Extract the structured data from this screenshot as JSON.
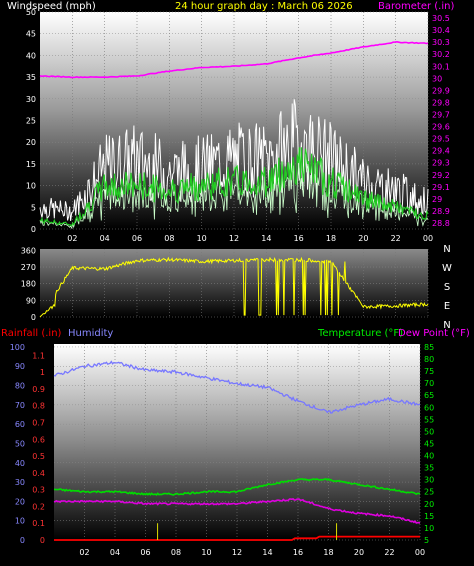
{
  "header": {
    "windspeed_label": "Windspeed (mph)",
    "title": "24 hour graph day : March 06 2026",
    "barometer_label": "Barometer (.in)"
  },
  "wind_panel": {
    "left_ticks": [
      "50",
      "45",
      "40",
      "35",
      "30",
      "25",
      "20",
      "15",
      "10",
      "5",
      "0"
    ],
    "right_ticks": [
      "30.5",
      "30.4",
      "30.3",
      "30.2",
      "30.1",
      "30",
      "29.9",
      "29.8",
      "29.7",
      "29.6",
      "29.5",
      "29.4",
      "29.3",
      "29.2",
      "29.1",
      "29",
      "28.9",
      "28.8"
    ]
  },
  "direction_panel": {
    "left_ticks": [
      "360",
      "270",
      "180",
      "90",
      "0"
    ],
    "compass": [
      "N",
      "W",
      "S",
      "E",
      "N"
    ]
  },
  "bottom_header": {
    "rainfall_label": "Rainfall (.in)",
    "humidity_label": "Humidity",
    "temperature_label": "Temperature (°F)",
    "dewpoint_label": "Dew Point (°F)"
  },
  "bottom_panel": {
    "humidity_ticks": [
      "100",
      "90",
      "80",
      "70",
      "60",
      "50",
      "40",
      "30",
      "20",
      "10",
      "0"
    ],
    "rain_ticks": [
      "1.1",
      "1",
      "0.9",
      "0.8",
      "0.7",
      "0.6",
      "0.5",
      "0.4",
      "0.3",
      "0.2",
      "0.1",
      "0"
    ],
    "temp_ticks": [
      "85",
      "80",
      "75",
      "70",
      "65",
      "60",
      "55",
      "50",
      "45",
      "40",
      "35",
      "30",
      "25",
      "20",
      "15",
      "10",
      "5"
    ]
  },
  "x_ticks": [
    "02",
    "04",
    "06",
    "08",
    "10",
    "12",
    "14",
    "16",
    "18",
    "20",
    "22",
    "00"
  ],
  "colors": {
    "windspeed": "#ffffff",
    "wind_avg": "#22cc22",
    "barometer": "#ff00ff",
    "direction": "#ffff00",
    "rainfall": "#ff0000",
    "humidity": "#7777ff",
    "temperature": "#00dd00",
    "dewpoint": "#dd00dd"
  },
  "chart_data": [
    {
      "type": "line",
      "title": "24 hour graph day : March 06 2026",
      "xlabel": "",
      "ylabel": "Windspeed (mph)",
      "ylim": [
        0,
        50
      ],
      "y2label": "Barometer (.in)",
      "y2lim": [
        28.75,
        30.55
      ],
      "x": [
        "00",
        "02",
        "04",
        "06",
        "08",
        "10",
        "12",
        "14",
        "16",
        "18",
        "20",
        "22",
        "00"
      ],
      "series": [
        {
          "name": "Barometer (.in)",
          "axis": "right",
          "values": [
            30.02,
            30.01,
            30.01,
            30.02,
            30.06,
            30.09,
            30.1,
            30.12,
            30.17,
            30.21,
            30.26,
            30.3,
            30.29
          ]
        }
      ],
      "windspeed_gust": [
        5,
        4,
        14,
        16,
        13,
        14,
        16,
        16,
        20,
        16,
        11,
        9,
        6
      ],
      "windspeed_avg": [
        2,
        1,
        10,
        10,
        9,
        10,
        11,
        11,
        15,
        11,
        7,
        5,
        3
      ]
    },
    {
      "type": "line",
      "ylabel": "Wind direction",
      "ylim": [
        0,
        360
      ],
      "x": [
        "00",
        "02",
        "04",
        "06",
        "08",
        "10",
        "12",
        "14",
        "16",
        "18",
        "20",
        "22",
        "00"
      ],
      "values": [
        5,
        265,
        260,
        305,
        310,
        300,
        305,
        310,
        310,
        300,
        55,
        60,
        70
      ]
    },
    {
      "type": "line",
      "ylabel": "Humidity",
      "ylim": [
        0,
        100
      ],
      "y2label": "Temperature (°F)",
      "y2lim": [
        5,
        85
      ],
      "x": [
        "00",
        "02",
        "04",
        "06",
        "08",
        "10",
        "12",
        "14",
        "16",
        "18",
        "20",
        "22",
        "00"
      ],
      "series": [
        {
          "name": "Humidity",
          "axis": "left",
          "values": [
            85,
            90,
            92,
            88,
            87,
            84,
            81,
            79,
            72,
            66,
            70,
            73,
            70
          ]
        },
        {
          "name": "Temperature (°F)",
          "axis": "right",
          "values": [
            26,
            25,
            25,
            24,
            24,
            25,
            25,
            28,
            30,
            30,
            28,
            26,
            24
          ]
        },
        {
          "name": "Dew Point (°F)",
          "axis": "right",
          "values": [
            21,
            21,
            21,
            20,
            20,
            20,
            20,
            21,
            22,
            18,
            16,
            15,
            12
          ]
        },
        {
          "name": "Rainfall (.in)",
          "axis": "rain",
          "values": [
            0,
            0,
            0,
            0,
            0,
            0,
            0,
            0,
            0.02,
            0.02,
            0.02,
            0.02,
            0.02
          ]
        }
      ],
      "rain_ylim": [
        0,
        1.15
      ]
    }
  ]
}
